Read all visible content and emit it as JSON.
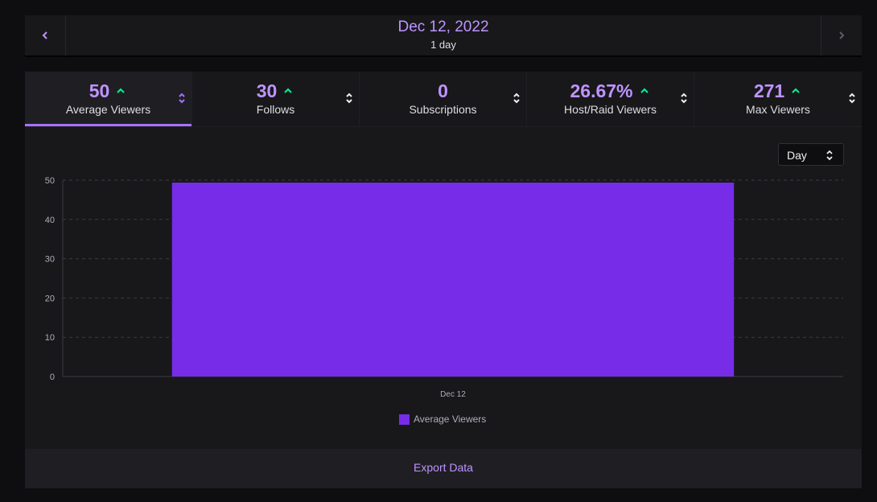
{
  "date_nav": {
    "title": "Dec 12, 2022",
    "subtitle": "1 day",
    "prev_icon": "chevron-left-icon",
    "next_icon": "chevron-right-icon"
  },
  "stats": [
    {
      "value": "50",
      "label": "Average Viewers",
      "trend": "up",
      "active": true
    },
    {
      "value": "30",
      "label": "Follows",
      "trend": "up",
      "active": false
    },
    {
      "value": "0",
      "label": "Subscriptions",
      "trend": "none",
      "active": false
    },
    {
      "value": "26.67%",
      "label": "Host/Raid Viewers",
      "trend": "up",
      "active": false
    },
    {
      "value": "271",
      "label": "Max Viewers",
      "trend": "up",
      "active": false
    }
  ],
  "range_select": {
    "value": "Day"
  },
  "chart_data": {
    "type": "bar",
    "categories": [
      "Dec 12"
    ],
    "series": [
      {
        "name": "Average Viewers",
        "values": [
          50
        ]
      }
    ],
    "ylim": [
      0,
      50
    ],
    "yticks": [
      0,
      10,
      20,
      30,
      40,
      50
    ],
    "grid": true,
    "legend": "bottom",
    "color": "#772ce8"
  },
  "footer": {
    "export_label": "Export Data"
  },
  "colors": {
    "accent": "#bf94ff",
    "bar": "#772ce8",
    "trend_up": "#00f593",
    "panel": "#18181b"
  }
}
